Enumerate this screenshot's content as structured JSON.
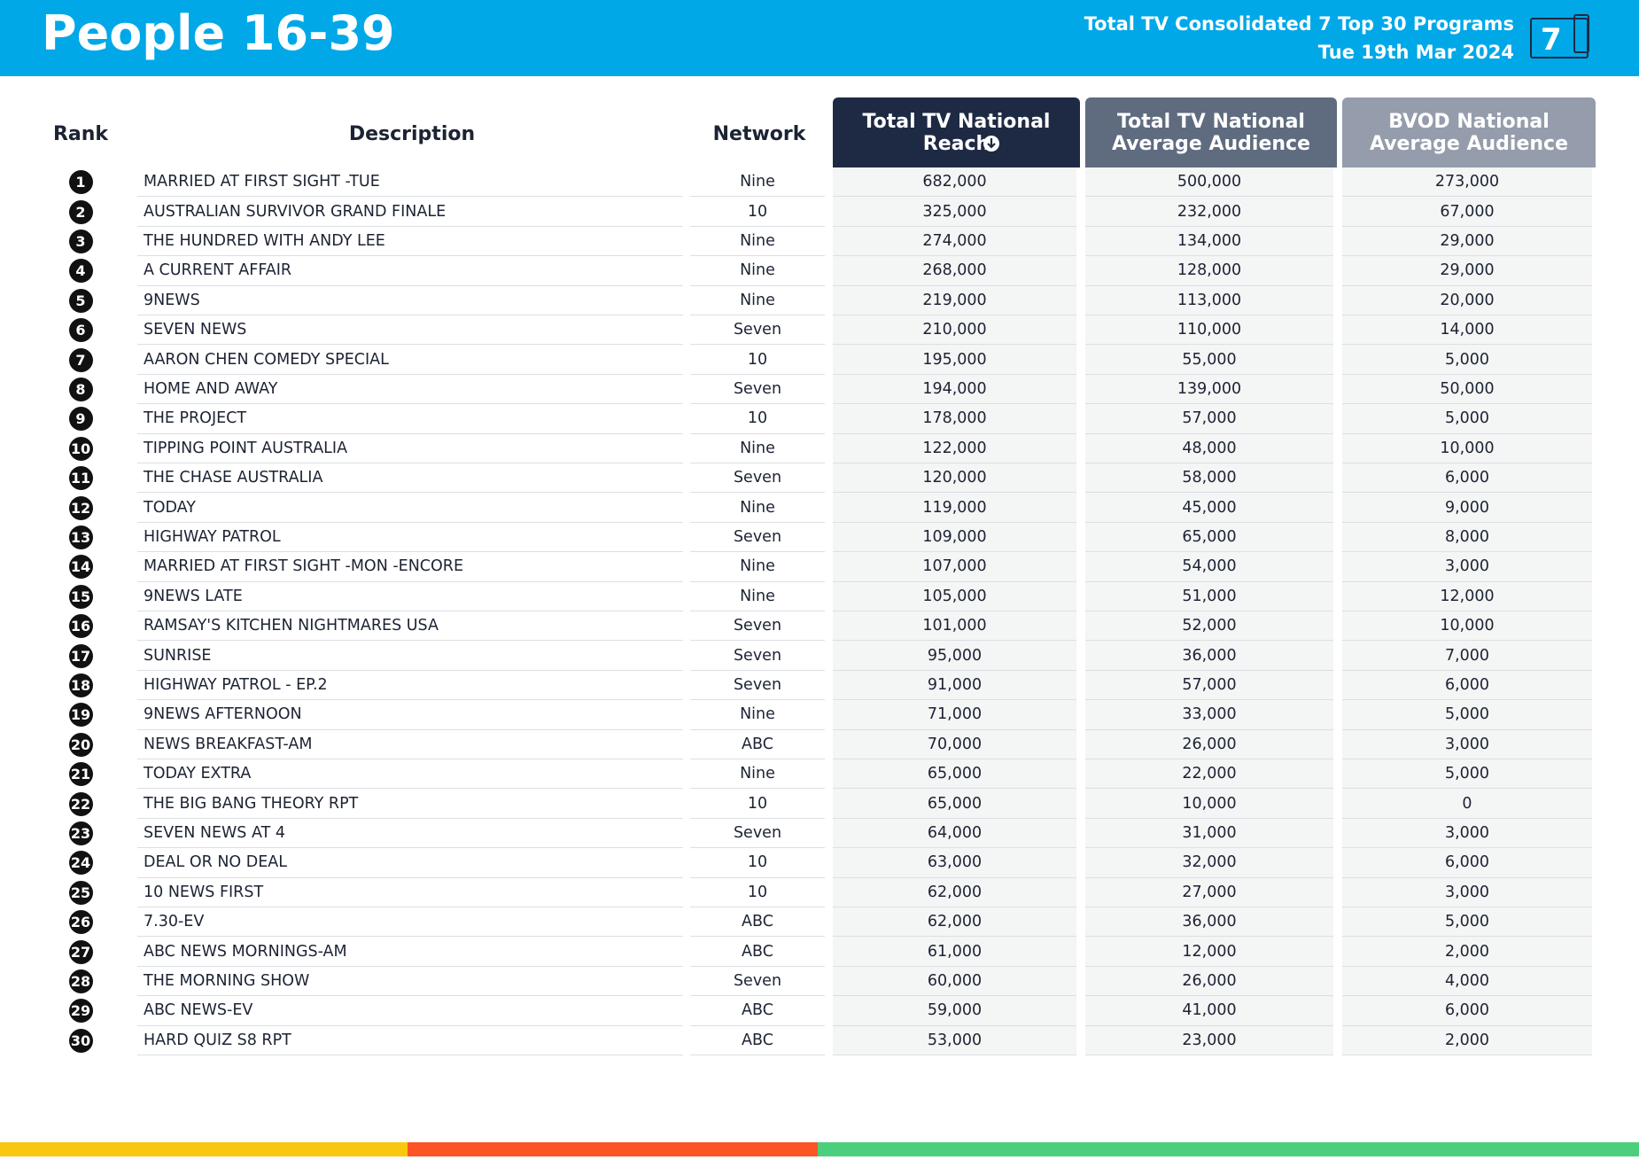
{
  "header": {
    "title": "People 16-39",
    "subtitle": "Total TV Consolidated 7 Top 30 Programs",
    "date": "Tue 19th Mar 2024",
    "logo": "7"
  },
  "table": {
    "columns": [
      "Rank",
      "Description",
      "Network",
      "Total TV National Reach",
      "Total TV National Average Audience",
      "BVOD National Average Audience"
    ],
    "rows": [
      [
        1,
        "MARRIED AT FIRST SIGHT -TUE",
        "Nine",
        "682,000",
        "500,000",
        "273,000"
      ],
      [
        2,
        "AUSTRALIAN SURVIVOR GRAND FINALE",
        "10",
        "325,000",
        "232,000",
        "67,000"
      ],
      [
        3,
        "THE HUNDRED WITH ANDY LEE",
        "Nine",
        "274,000",
        "134,000",
        "29,000"
      ],
      [
        4,
        "A CURRENT AFFAIR",
        "Nine",
        "268,000",
        "128,000",
        "29,000"
      ],
      [
        5,
        "9NEWS",
        "Nine",
        "219,000",
        "113,000",
        "20,000"
      ],
      [
        6,
        "SEVEN NEWS",
        "Seven",
        "210,000",
        "110,000",
        "14,000"
      ],
      [
        7,
        "AARON CHEN COMEDY SPECIAL",
        "10",
        "195,000",
        "55,000",
        "5,000"
      ],
      [
        8,
        "HOME AND AWAY",
        "Seven",
        "194,000",
        "139,000",
        "50,000"
      ],
      [
        9,
        "THE PROJECT",
        "10",
        "178,000",
        "57,000",
        "5,000"
      ],
      [
        10,
        "TIPPING POINT AUSTRALIA",
        "Nine",
        "122,000",
        "48,000",
        "10,000"
      ],
      [
        11,
        "THE CHASE AUSTRALIA",
        "Seven",
        "120,000",
        "58,000",
        "6,000"
      ],
      [
        12,
        "TODAY",
        "Nine",
        "119,000",
        "45,000",
        "9,000"
      ],
      [
        13,
        "HIGHWAY PATROL",
        "Seven",
        "109,000",
        "65,000",
        "8,000"
      ],
      [
        14,
        "MARRIED AT FIRST SIGHT -MON -ENCORE",
        "Nine",
        "107,000",
        "54,000",
        "3,000"
      ],
      [
        15,
        "9NEWS LATE",
        "Nine",
        "105,000",
        "51,000",
        "12,000"
      ],
      [
        16,
        "RAMSAY'S KITCHEN NIGHTMARES USA",
        "Seven",
        "101,000",
        "52,000",
        "10,000"
      ],
      [
        17,
        "SUNRISE",
        "Seven",
        "95,000",
        "36,000",
        "7,000"
      ],
      [
        18,
        "HIGHWAY PATROL - EP.2",
        "Seven",
        "91,000",
        "57,000",
        "6,000"
      ],
      [
        19,
        "9NEWS AFTERNOON",
        "Nine",
        "71,000",
        "33,000",
        "5,000"
      ],
      [
        20,
        "NEWS BREAKFAST-AM",
        "ABC",
        "70,000",
        "26,000",
        "3,000"
      ],
      [
        21,
        "TODAY EXTRA",
        "Nine",
        "65,000",
        "22,000",
        "5,000"
      ],
      [
        22,
        "THE BIG BANG THEORY RPT",
        "10",
        "65,000",
        "10,000",
        "0"
      ],
      [
        23,
        "SEVEN NEWS AT 4",
        "Seven",
        "64,000",
        "31,000",
        "3,000"
      ],
      [
        24,
        "DEAL OR NO DEAL",
        "10",
        "63,000",
        "32,000",
        "6,000"
      ],
      [
        25,
        "10 NEWS FIRST",
        "10",
        "62,000",
        "27,000",
        "3,000"
      ],
      [
        26,
        "7.30-EV",
        "ABC",
        "62,000",
        "36,000",
        "5,000"
      ],
      [
        27,
        "ABC NEWS MORNINGS-AM",
        "ABC",
        "61,000",
        "12,000",
        "2,000"
      ],
      [
        28,
        "THE MORNING SHOW",
        "Seven",
        "60,000",
        "26,000",
        "4,000"
      ],
      [
        29,
        "ABC NEWS-EV",
        "ABC",
        "59,000",
        "41,000",
        "6,000"
      ],
      [
        30,
        "HARD QUIZ S8 RPT",
        "ABC",
        "53,000",
        "23,000",
        "2,000"
      ]
    ]
  }
}
